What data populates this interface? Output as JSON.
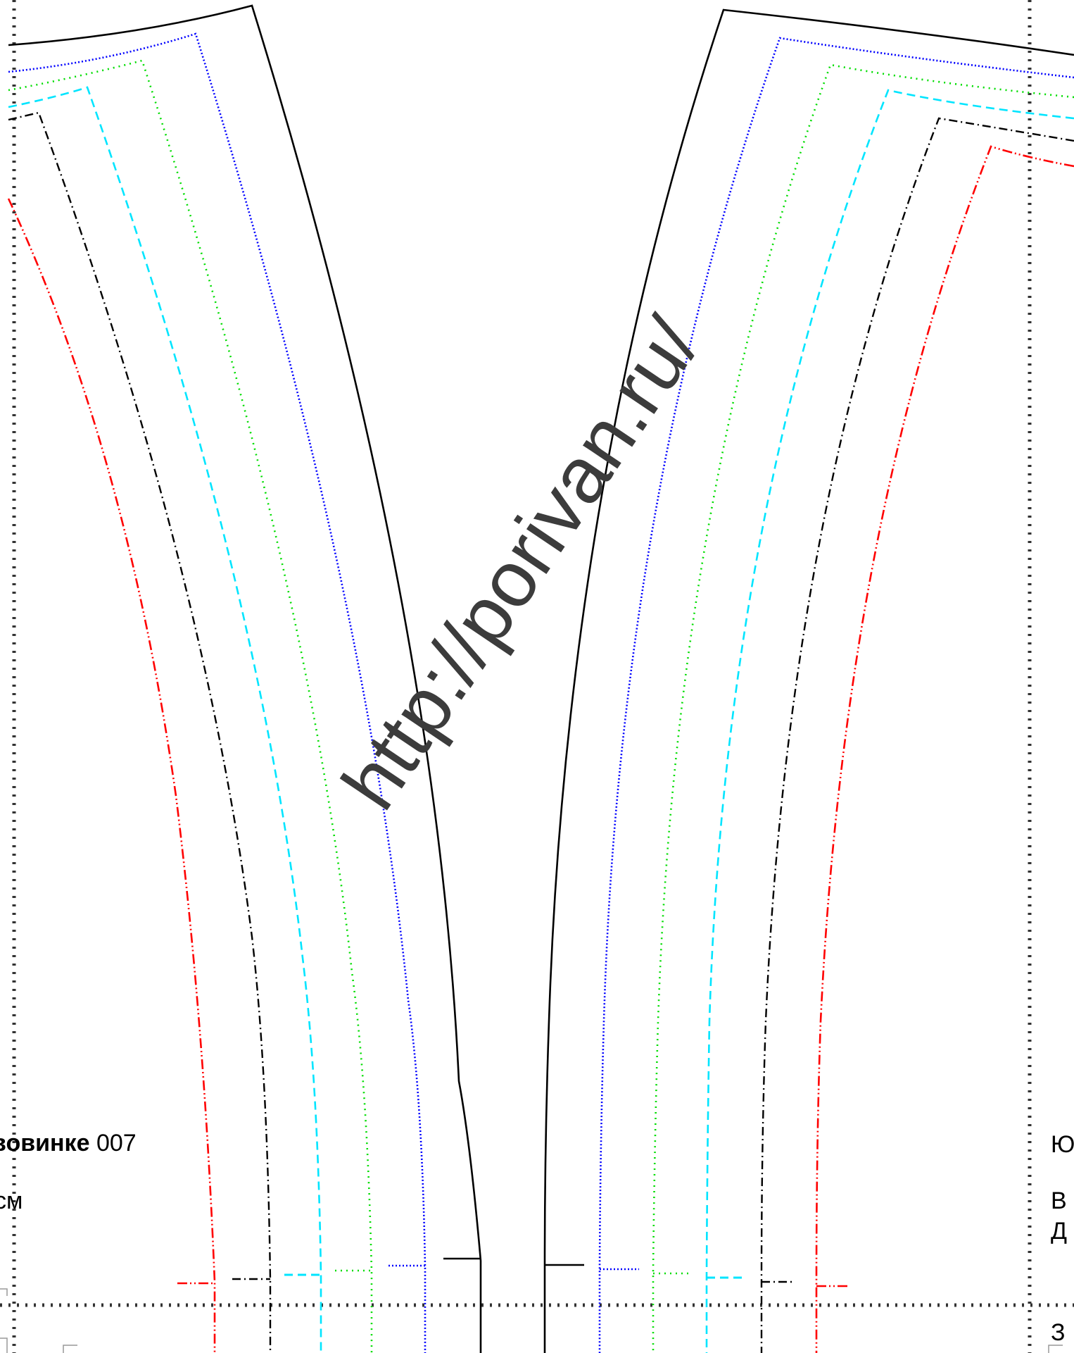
{
  "watermark": {
    "text": "http://porivan.ru/"
  },
  "left_text": {
    "line1_bold": "вовинке",
    "line1_number": "007",
    "line2": "см"
  },
  "right_text": {
    "line1": "Ю",
    "line2a": "В",
    "line2b": "Д",
    "line3": "З"
  },
  "pattern": {
    "size_lines": [
      {
        "name": "size-black-solid",
        "color": "#000000",
        "style": "solid"
      },
      {
        "name": "size-blue-dotted",
        "color": "#0000ff",
        "style": "dotted"
      },
      {
        "name": "size-green-dotted",
        "color": "#00dd00",
        "style": "dotted"
      },
      {
        "name": "size-cyan-dashed",
        "color": "#00e5ff",
        "style": "dashed"
      },
      {
        "name": "size-black-dashdot",
        "color": "#000000",
        "style": "dashdot"
      },
      {
        "name": "size-red-dashdotdot",
        "color": "#ff0000",
        "style": "dashdotdot"
      }
    ],
    "page_border_color": "#333333"
  }
}
